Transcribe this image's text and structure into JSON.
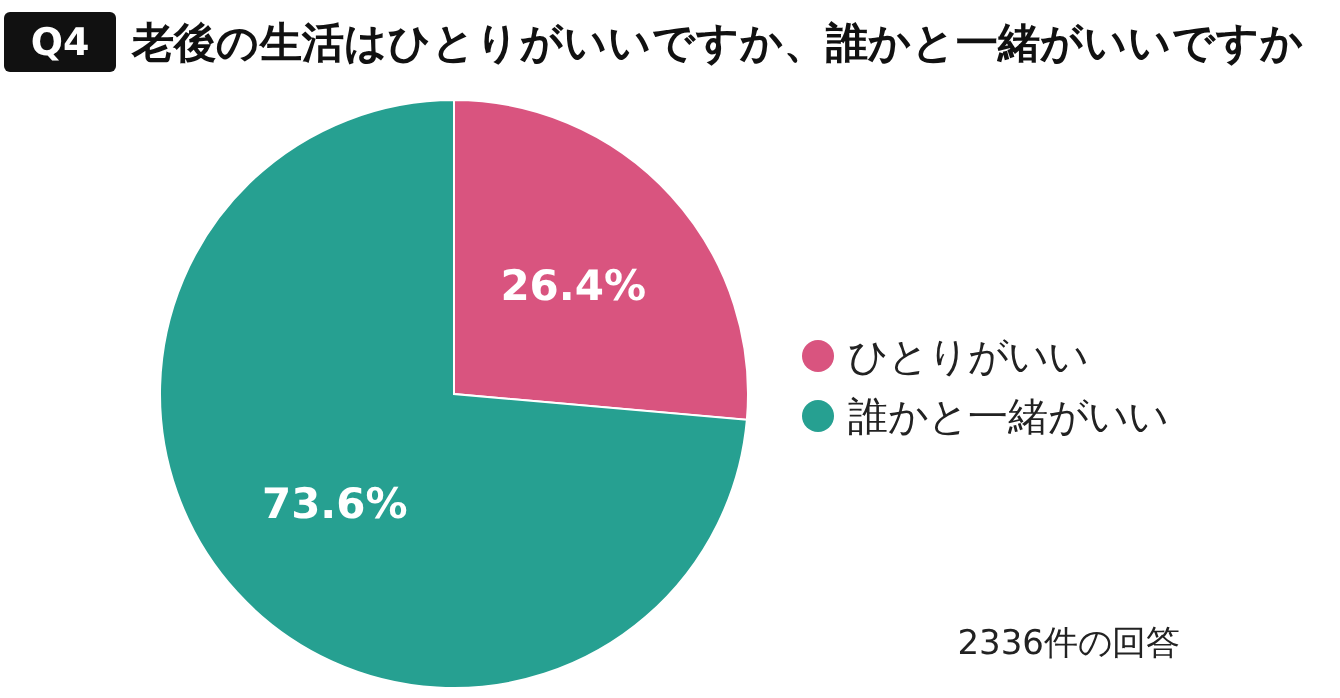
{
  "chart_data": {
    "type": "pie",
    "title": "老後の生活はひとりがいいですか、誰かと一緒がいいですか",
    "categories": [
      "ひとりがいい",
      "誰かと一緒がいい"
    ],
    "values": [
      26.4,
      73.6
    ],
    "colors": [
      "#d9547f",
      "#26a091"
    ],
    "value_labels": [
      "26.4%",
      "73.6%"
    ],
    "legend": "right",
    "annotations": [
      "Q4",
      "2336件の回答"
    ]
  }
}
